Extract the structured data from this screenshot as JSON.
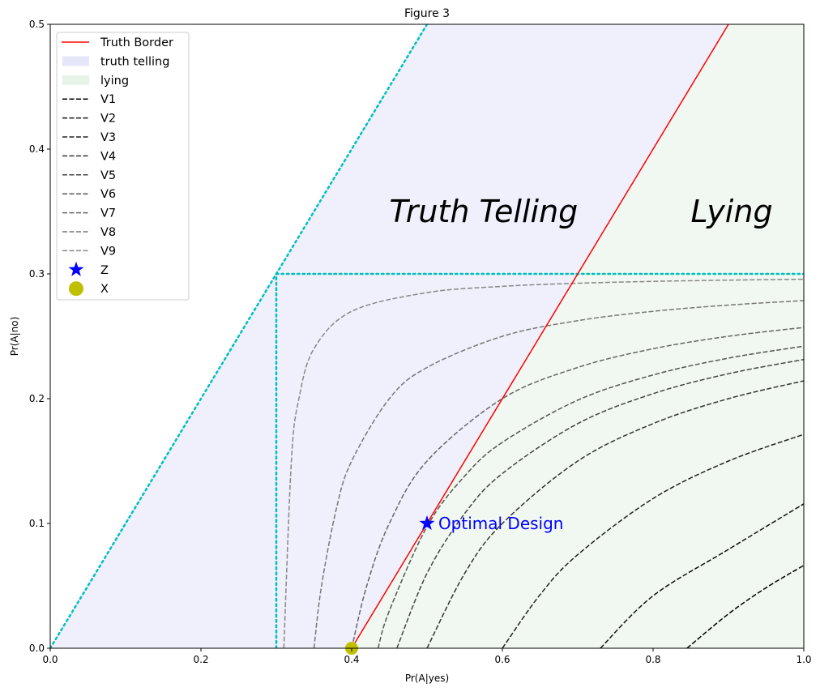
{
  "chart_data": {
    "type": "line",
    "title": "Figure 3",
    "xlabel": "Pr(A|yes)",
    "ylabel": "Pr(A|no)",
    "xlim": [
      0,
      1
    ],
    "ylim": [
      0,
      0.5
    ],
    "xticks": [
      "0.0",
      "0.2",
      "0.4",
      "0.6",
      "0.8",
      "1.0"
    ],
    "yticks": [
      "0.0",
      "0.1",
      "0.2",
      "0.3",
      "0.4",
      "0.5"
    ],
    "grid": false,
    "legend_position": "top-left",
    "truth_border": {
      "name": "Truth Border",
      "color": "#ff0000",
      "x": [
        0.4,
        0.9
      ],
      "y": [
        0.0,
        0.5
      ]
    },
    "regions": [
      {
        "name": "truth telling",
        "color": "#e6e6fa",
        "polygon": [
          [
            0,
            0
          ],
          [
            0.4,
            0
          ],
          [
            0.9,
            0.5
          ],
          [
            0.5,
            0.5
          ]
        ]
      },
      {
        "name": "lying",
        "color": "#e8f3e8",
        "polygon": [
          [
            0.4,
            0
          ],
          [
            1,
            0
          ],
          [
            1,
            0.5
          ],
          [
            0.9,
            0.5
          ]
        ]
      }
    ],
    "reference_lines": {
      "color": "#00bfbf",
      "lines": [
        {
          "x": [
            0,
            0.5
          ],
          "y": [
            0,
            0.5
          ]
        },
        {
          "x": [
            0.3,
            0.3
          ],
          "y": [
            0,
            0.3
          ]
        },
        {
          "x": [
            0.3,
            1.0
          ],
          "y": [
            0.3,
            0.3
          ]
        }
      ]
    },
    "series": [
      {
        "name": "V1",
        "color": "#000000",
        "x": [
          0.845,
          0.9,
          0.95,
          1.0
        ],
        "y": [
          0,
          0.0275,
          0.0485,
          0.0664
        ]
      },
      {
        "name": "V2",
        "color": "#121212",
        "x": [
          0.73,
          0.8,
          0.9,
          1.0
        ],
        "y": [
          0,
          0.042,
          0.0792,
          0.1157
        ]
      },
      {
        "name": "V3",
        "color": "#222222",
        "x": [
          0.6,
          0.65,
          0.7,
          0.8,
          0.9,
          1.0
        ],
        "y": [
          0,
          0.0429,
          0.075,
          0.12,
          0.15,
          0.1714
        ]
      },
      {
        "name": "V4",
        "color": "#333333",
        "x": [
          0.5,
          0.55,
          0.6,
          0.7,
          0.8,
          0.9,
          1.0
        ],
        "y": [
          0,
          0.06,
          0.1,
          0.15,
          0.18,
          0.2,
          0.2143
        ]
      },
      {
        "name": "V5",
        "color": "#444444",
        "x": [
          0.46,
          0.5,
          0.55,
          0.6,
          0.7,
          0.8,
          0.9,
          1.0
        ],
        "y": [
          0,
          0.06,
          0.108,
          0.14,
          0.18,
          0.204,
          0.22,
          0.2314
        ]
      },
      {
        "name": "V6",
        "color": "#555555",
        "x": [
          0.435,
          0.45,
          0.5,
          0.55,
          0.6,
          0.7,
          0.8,
          0.9,
          1.0
        ],
        "y": [
          0,
          0.03,
          0.0975,
          0.138,
          0.165,
          0.1988,
          0.219,
          0.2325,
          0.2421
        ]
      },
      {
        "name": "V7",
        "color": "#666666",
        "x": [
          0.4,
          0.42,
          0.45,
          0.5,
          0.6,
          0.7,
          0.8,
          0.9,
          1.0
        ],
        "y": [
          0,
          0.05,
          0.1,
          0.15,
          0.2,
          0.225,
          0.24,
          0.25,
          0.2571
        ]
      },
      {
        "name": "V8",
        "color": "#777777",
        "x": [
          0.35,
          0.36,
          0.38,
          0.4,
          0.45,
          0.5,
          0.6,
          0.7,
          0.8,
          0.9,
          1.0
        ],
        "y": [
          0,
          0.05,
          0.1125,
          0.15,
          0.2,
          0.225,
          0.25,
          0.2625,
          0.27,
          0.275,
          0.2786
        ]
      },
      {
        "name": "V9",
        "color": "#888888",
        "x": [
          0.31,
          0.32,
          0.33,
          0.35,
          0.4,
          0.5,
          0.6,
          0.7,
          0.8,
          0.9,
          1.0
        ],
        "y": [
          0,
          0.15,
          0.2,
          0.24,
          0.27,
          0.285,
          0.29,
          0.2925,
          0.294,
          0.295,
          0.2957
        ]
      }
    ],
    "points": [
      {
        "name": "Z",
        "marker": "star",
        "color": "#0000ff",
        "x": 0.5,
        "y": 0.1
      },
      {
        "name": "X",
        "marker": "circle",
        "color": "#bfbf00",
        "x": 0.4,
        "y": 0.0
      }
    ],
    "annotations": [
      {
        "text": "Truth Telling",
        "x": 0.45,
        "y": 0.35,
        "color": "#000000",
        "style": "italic"
      },
      {
        "text": "Lying",
        "x": 0.85,
        "y": 0.35,
        "color": "#000000",
        "style": "italic"
      },
      {
        "text": "Optimal Design",
        "x": 0.515,
        "y": 0.1,
        "color": "#0000ff",
        "style": "normal"
      }
    ]
  }
}
